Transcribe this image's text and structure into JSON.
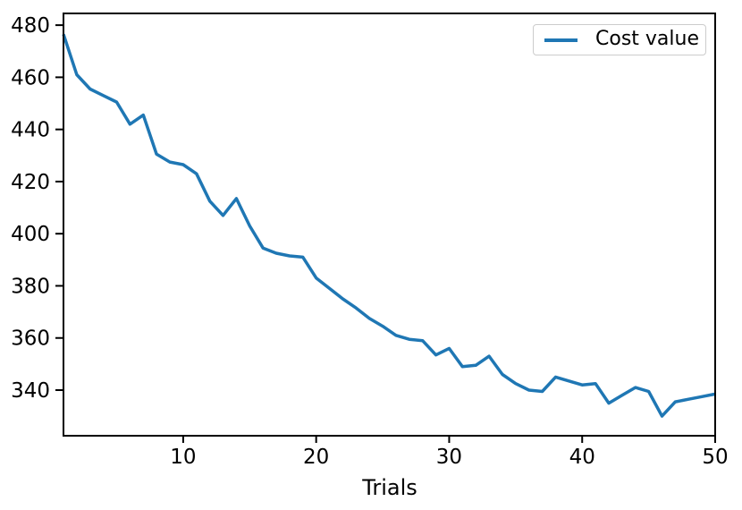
{
  "chart_data": {
    "type": "line",
    "title": "",
    "xlabel": "Trials",
    "ylabel": "",
    "legend": {
      "label": "Cost value",
      "position": "upper right"
    },
    "line_color": "#1f77b4",
    "axis_color": "#000000",
    "text_color": "#000000",
    "grid": false,
    "xlim": [
      1,
      50
    ],
    "ylim": [
      322.5,
      484.5
    ],
    "xticks": [
      10,
      20,
      30,
      40,
      50
    ],
    "yticks": [
      340,
      360,
      380,
      400,
      420,
      440,
      460,
      480
    ],
    "x": [
      1,
      2,
      3,
      4,
      5,
      6,
      7,
      8,
      9,
      10,
      11,
      12,
      13,
      14,
      15,
      16,
      17,
      18,
      19,
      20,
      21,
      22,
      23,
      24,
      25,
      26,
      27,
      28,
      29,
      30,
      31,
      32,
      33,
      34,
      35,
      36,
      37,
      38,
      39,
      40,
      41,
      42,
      43,
      44,
      45,
      46,
      47,
      48,
      49,
      50
    ],
    "series": [
      {
        "name": "Cost value",
        "values": [
          476.5,
          461,
          455.5,
          453,
          450.5,
          442,
          445.5,
          430.5,
          427.5,
          426.5,
          423,
          412.5,
          407,
          413.5,
          403,
          394.5,
          392.5,
          391.5,
          391,
          383,
          379,
          375,
          371.5,
          367.5,
          364.5,
          361,
          359.5,
          359,
          353.5,
          356,
          349,
          349.5,
          353,
          346,
          342.5,
          340,
          339.5,
          345,
          343.5,
          342,
          342.5,
          335,
          338,
          341,
          339.5,
          330,
          335.5,
          336.5,
          337.5,
          338.5
        ]
      }
    ]
  }
}
